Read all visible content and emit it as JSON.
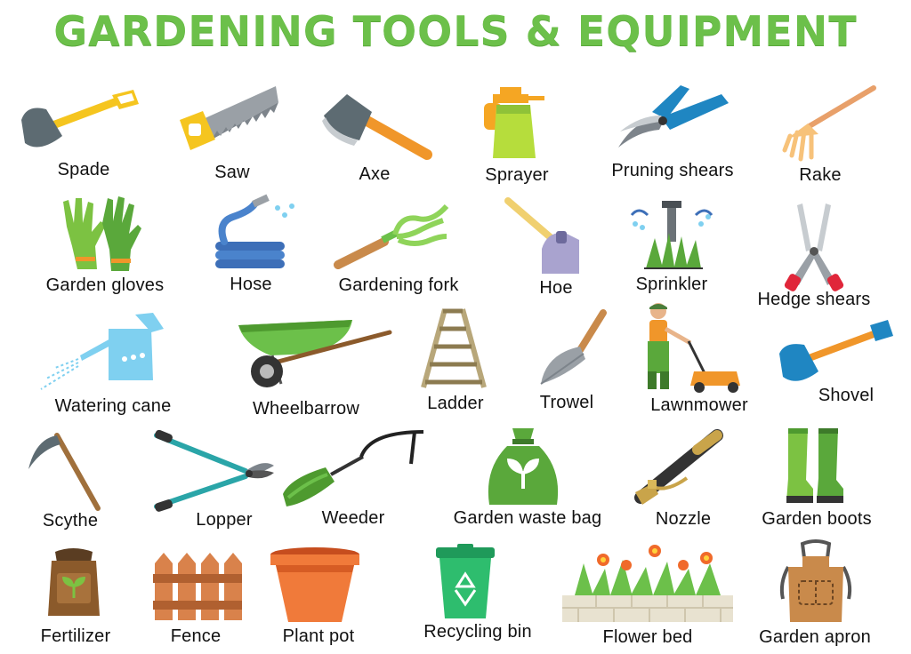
{
  "title": "GARDENING TOOLS & EQUIPMENT",
  "items": [
    {
      "label": "Spade",
      "icon": "spade-icon"
    },
    {
      "label": "Saw",
      "icon": "saw-icon"
    },
    {
      "label": "Axe",
      "icon": "axe-icon"
    },
    {
      "label": "Sprayer",
      "icon": "sprayer-icon"
    },
    {
      "label": "Pruning shears",
      "icon": "pruning-shears-icon"
    },
    {
      "label": "Rake",
      "icon": "rake-icon"
    },
    {
      "label": "Garden gloves",
      "icon": "garden-gloves-icon"
    },
    {
      "label": "Hose",
      "icon": "hose-icon"
    },
    {
      "label": "Gardening fork",
      "icon": "gardening-fork-icon"
    },
    {
      "label": "Hoe",
      "icon": "hoe-icon"
    },
    {
      "label": "Sprinkler",
      "icon": "sprinkler-icon"
    },
    {
      "label": "Hedge shears",
      "icon": "hedge-shears-icon"
    },
    {
      "label": "Watering cane",
      "icon": "watering-can-icon"
    },
    {
      "label": "Wheelbarrow",
      "icon": "wheelbarrow-icon"
    },
    {
      "label": "Ladder",
      "icon": "ladder-icon"
    },
    {
      "label": "Trowel",
      "icon": "trowel-icon"
    },
    {
      "label": "Lawnmower",
      "icon": "lawnmower-icon"
    },
    {
      "label": "Shovel",
      "icon": "shovel-icon"
    },
    {
      "label": "Scythe",
      "icon": "scythe-icon"
    },
    {
      "label": "Lopper",
      "icon": "lopper-icon"
    },
    {
      "label": "Weeder",
      "icon": "weeder-icon"
    },
    {
      "label": "Garden waste bag",
      "icon": "garden-waste-bag-icon"
    },
    {
      "label": "Nozzle",
      "icon": "nozzle-icon"
    },
    {
      "label": "Garden boots",
      "icon": "garden-boots-icon"
    },
    {
      "label": "Fertilizer",
      "icon": "fertilizer-icon"
    },
    {
      "label": "Fence",
      "icon": "fence-icon"
    },
    {
      "label": "Plant pot",
      "icon": "plant-pot-icon"
    },
    {
      "label": "Recycling bin",
      "icon": "recycling-bin-icon"
    },
    {
      "label": "Flower bed",
      "icon": "flower-bed-icon"
    },
    {
      "label": "Garden apron",
      "icon": "garden-apron-icon"
    }
  ]
}
